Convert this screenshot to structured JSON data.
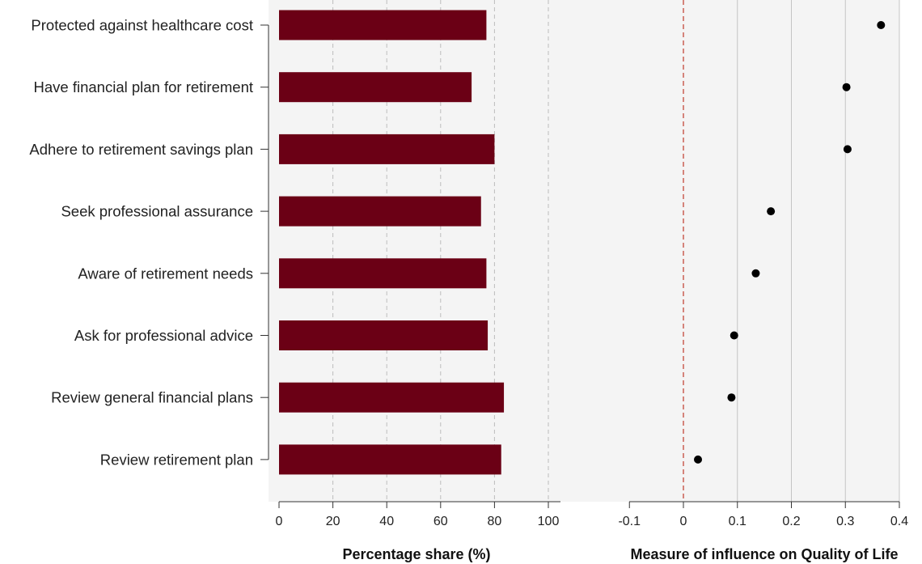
{
  "chart_data": [
    {
      "type": "bar",
      "orientation": "horizontal",
      "categories": [
        "Protected against healthcare cost",
        "Have financial plan for retirement",
        "Adhere to retirement savings plan",
        "Seek professional assurance",
        "Aware of retirement needs",
        "Ask for professional advice",
        "Review general financial plans",
        "Review retirement plan"
      ],
      "values": [
        77,
        71.5,
        80,
        75,
        77,
        77.5,
        83.5,
        82.5
      ],
      "xlabel": "Percentage share (%)",
      "xlim": [
        0,
        105
      ],
      "xticks": [
        0,
        20,
        40,
        60,
        80,
        100
      ],
      "grid": "vertical-dashed",
      "bar_color": "#6b0015",
      "background": "#f4f4f4"
    },
    {
      "type": "scatter",
      "categories": [
        "Protected against healthcare cost",
        "Have financial plan for retirement",
        "Adhere to retirement savings plan",
        "Seek professional assurance",
        "Aware of retirement needs",
        "Ask for professional advice",
        "Review general financial plans",
        "Review retirement plan"
      ],
      "values": [
        0.366,
        0.302,
        0.304,
        0.162,
        0.134,
        0.094,
        0.089,
        0.027
      ],
      "xlabel": "Measure of influence on Quality of Life",
      "xlim": [
        -0.15,
        0.4
      ],
      "xticks": [
        -0.1,
        0,
        0.1,
        0.2,
        0.3,
        0.4
      ],
      "reference_line": 0,
      "reference_color": "#c0392b",
      "grid": "vertical",
      "point_color": "#000000",
      "background": "#f4f4f4"
    }
  ]
}
